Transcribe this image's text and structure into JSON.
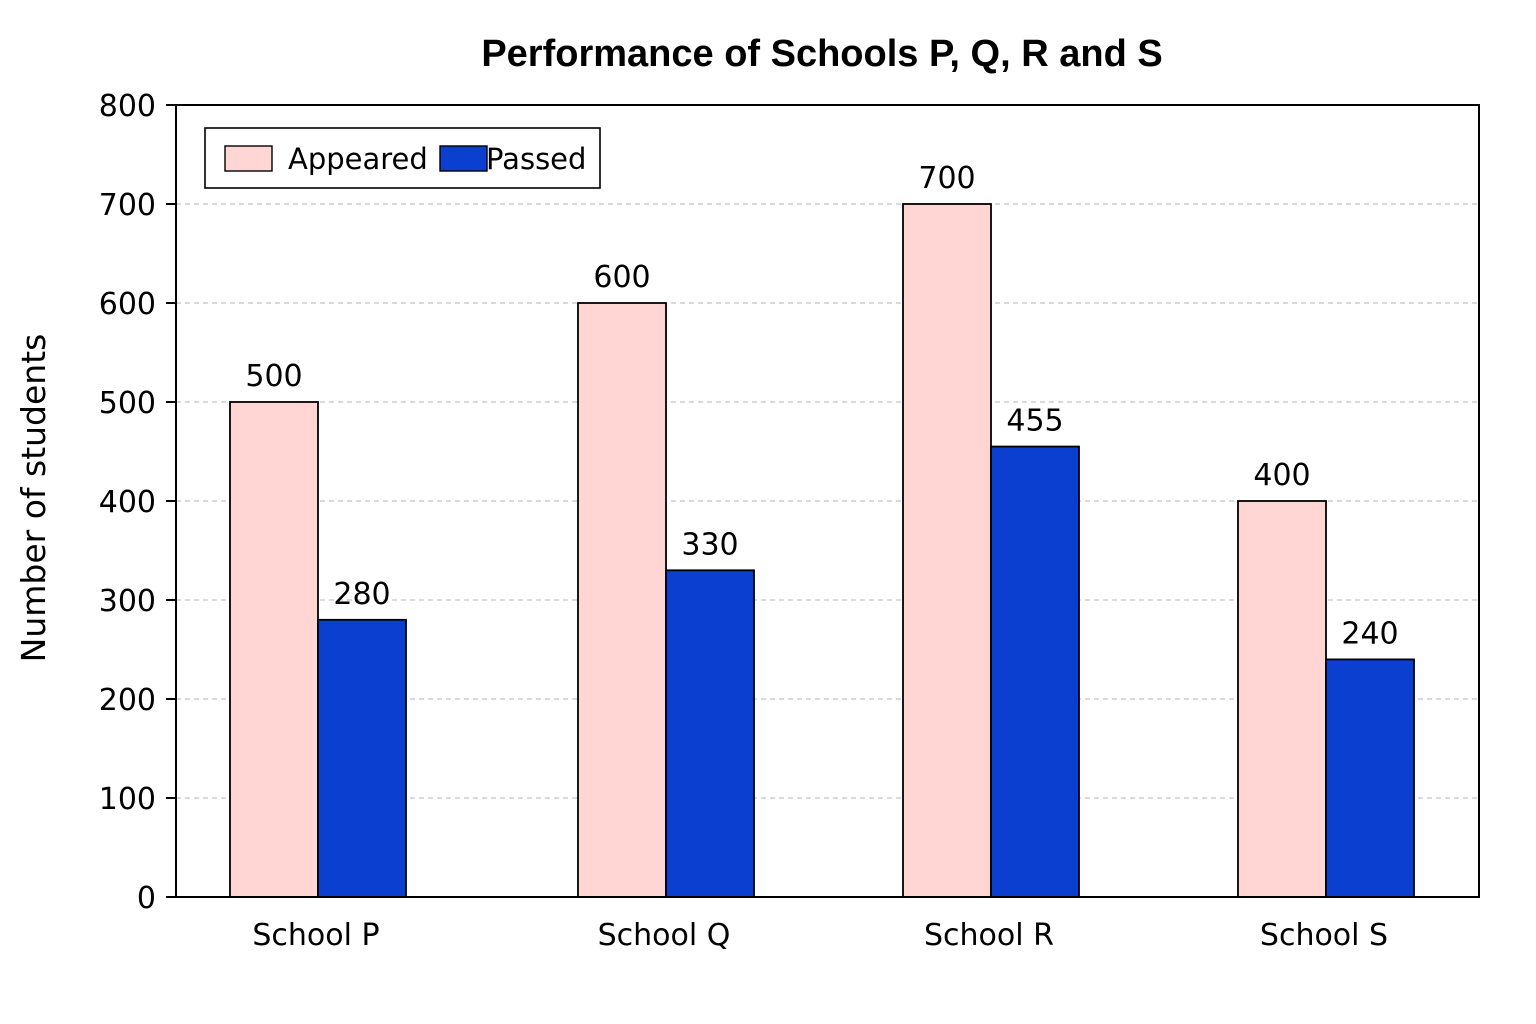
{
  "chart_data": {
    "type": "bar",
    "title": "Performance of Schools P, Q, R and S",
    "xlabel": "",
    "ylabel": "Number of students",
    "ylim": [
      0,
      800
    ],
    "yticks": [
      0,
      100,
      200,
      300,
      400,
      500,
      600,
      700,
      800
    ],
    "categories": [
      "School P",
      "School Q",
      "School R",
      "School S"
    ],
    "series": [
      {
        "name": "Appeared",
        "color": "#ffd6d3",
        "values": [
          500,
          600,
          700,
          400
        ]
      },
      {
        "name": "Passed",
        "color": "#0a3fcf",
        "values": [
          280,
          330,
          455,
          240
        ]
      }
    ],
    "grid": true,
    "legend": "top-left",
    "data_labels": true
  }
}
